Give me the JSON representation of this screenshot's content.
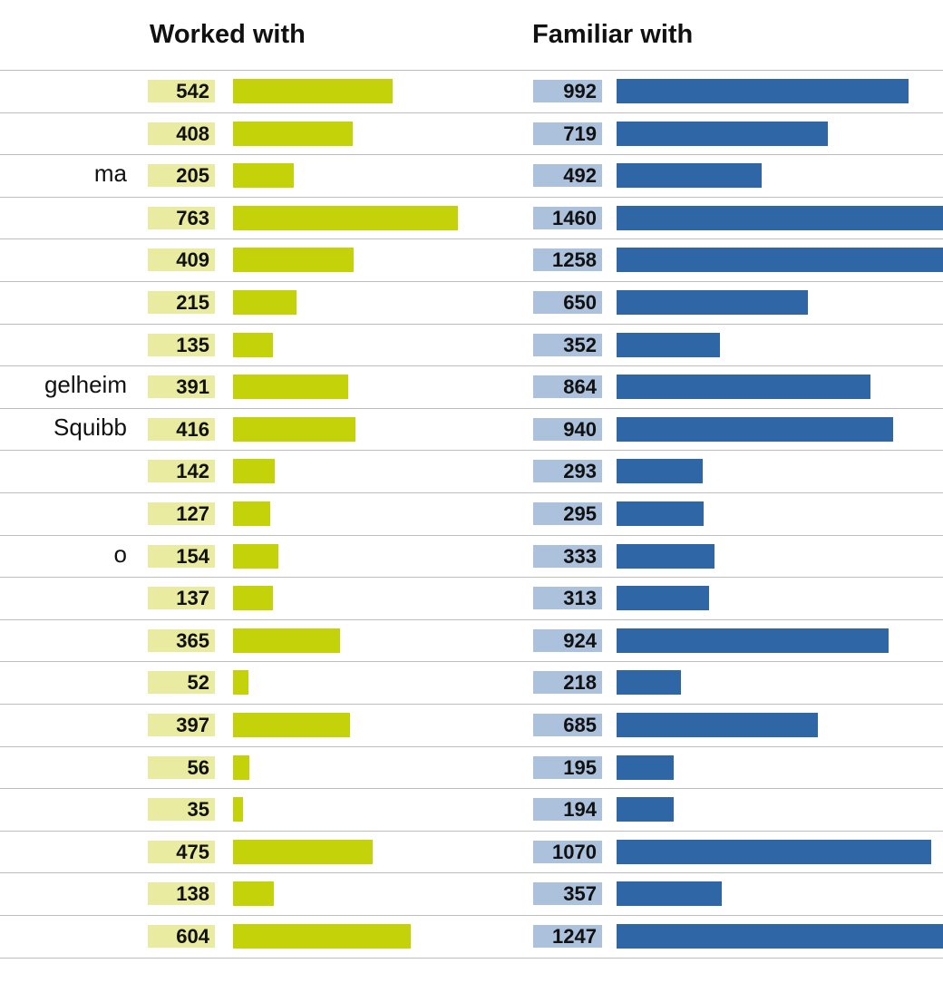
{
  "headers": {
    "worked": "Worked with",
    "familiar": "Familiar with"
  },
  "colors": {
    "worked_bar": "#c4d20a",
    "worked_box": "#e9eca0",
    "familiar_bar": "#2f66a5",
    "familiar_box": "#abc1dc"
  },
  "chart_data": {
    "type": "bar",
    "categories": [
      "",
      "",
      "ma",
      "",
      "",
      "",
      "",
      "gelheim",
      "Squibb",
      "",
      "",
      "o",
      "",
      "",
      "",
      "",
      "",
      "",
      "",
      "",
      ""
    ],
    "series": [
      {
        "name": "Worked with",
        "values": [
          542,
          408,
          205,
          763,
          409,
          215,
          135,
          391,
          416,
          142,
          127,
          154,
          137,
          365,
          52,
          397,
          56,
          35,
          475,
          138,
          604
        ]
      },
      {
        "name": "Familiar with",
        "values": [
          992,
          719,
          492,
          1460,
          1258,
          650,
          352,
          864,
          940,
          293,
          295,
          333,
          313,
          924,
          218,
          685,
          195,
          194,
          1070,
          357,
          1247
        ]
      }
    ]
  }
}
